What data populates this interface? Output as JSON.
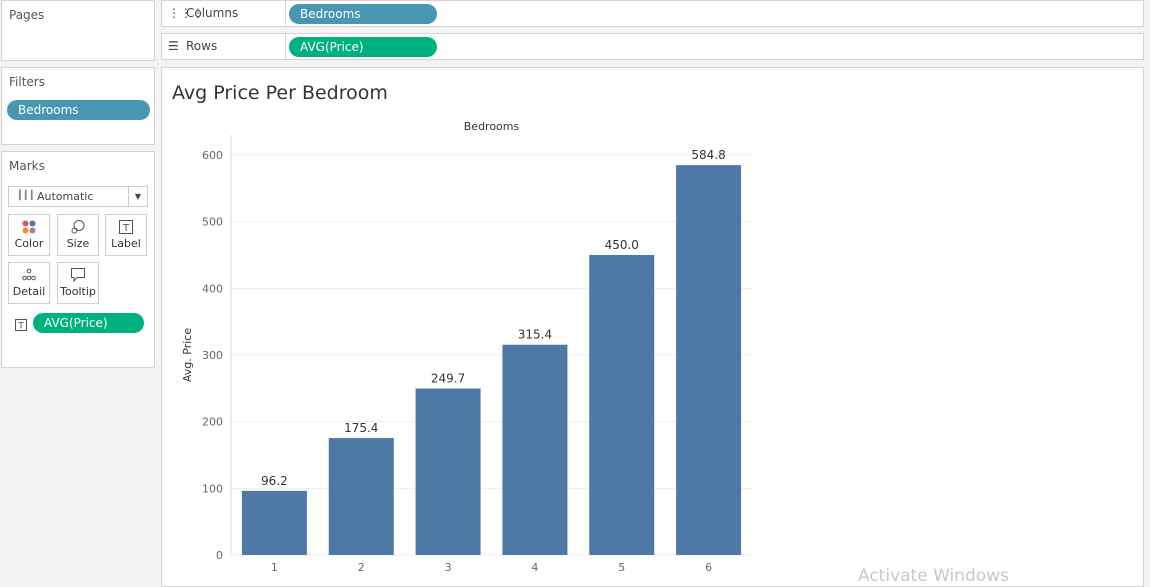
{
  "pages": {
    "title": "Pages"
  },
  "shelves": {
    "columns": {
      "label": "Columns",
      "icon": "columns-icon",
      "pill": "Bedrooms"
    },
    "rows": {
      "label": "Rows",
      "icon": "rows-icon",
      "pill": "AVG(Price)"
    }
  },
  "filters": {
    "title": "Filters",
    "pill": "Bedrooms"
  },
  "marks": {
    "title": "Marks",
    "type_selected": "Automatic",
    "buttons": [
      {
        "label": "Color",
        "icon": "color-icon"
      },
      {
        "label": "Size",
        "icon": "size-icon"
      },
      {
        "label": "Label",
        "icon": "label-icon"
      },
      {
        "label": "Detail",
        "icon": "detail-icon"
      },
      {
        "label": "Tooltip",
        "icon": "tooltip-icon"
      }
    ],
    "field_pill": "AVG(Price)",
    "field_icon": "text-label-icon"
  },
  "sheet": {
    "title": "Avg Price Per Bedroom"
  },
  "chart_data": {
    "type": "bar",
    "column_header": "Bedrooms",
    "ylabel": "Avg. Price",
    "categories": [
      "1",
      "2",
      "3",
      "4",
      "5",
      "6"
    ],
    "values": [
      96.2,
      175.4,
      249.7,
      315.4,
      450.0,
      584.8
    ],
    "data_labels": [
      "96.2",
      "175.4",
      "249.7",
      "315.4",
      "450.0",
      "584.8"
    ],
    "y_ticks": [
      0,
      100,
      200,
      300,
      400,
      500,
      600
    ],
    "ylim": [
      0,
      630
    ],
    "grid": true,
    "bar_color": "#4e79a7"
  },
  "watermark": "Activate Windows"
}
